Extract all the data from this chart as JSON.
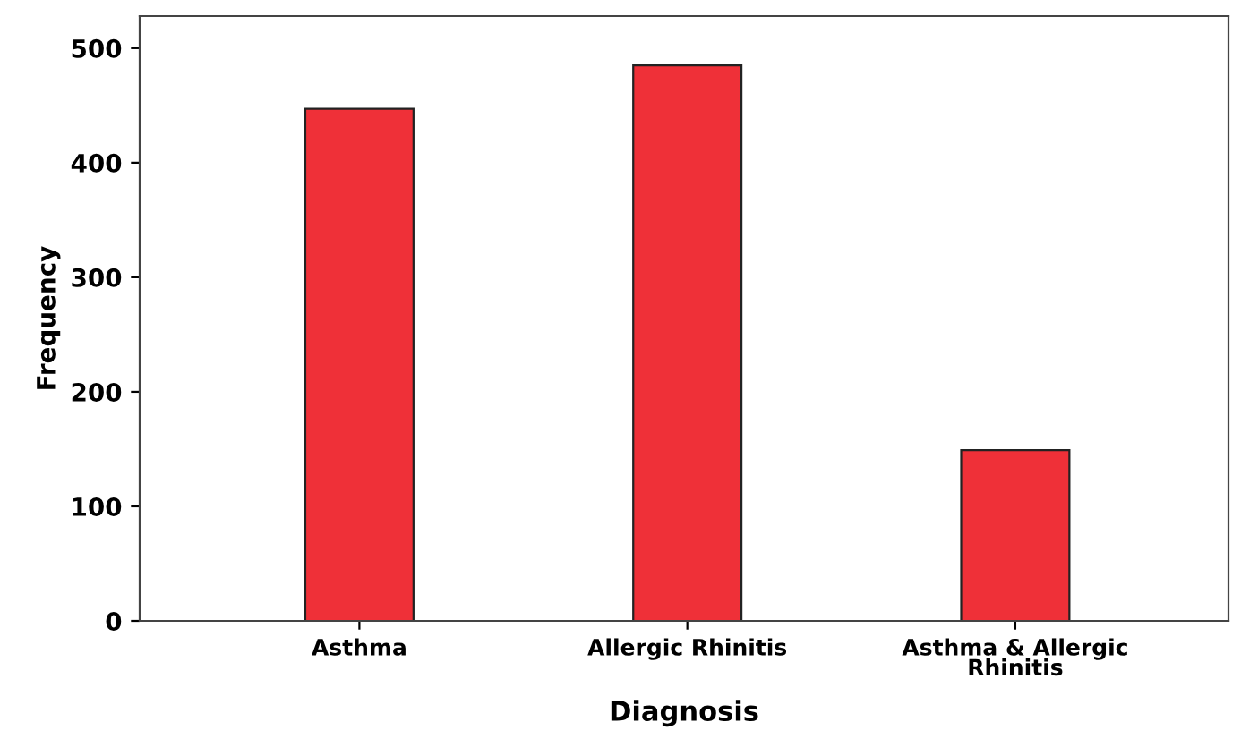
{
  "chart_data": {
    "type": "bar",
    "xlabel": "Diagnosis",
    "ylabel": "Frequency",
    "categories": [
      "Asthma",
      "Allergic Rhinitis",
      "Asthma & Allergic\nRhinitis"
    ],
    "values": [
      447,
      485,
      149
    ],
    "color": "#ef3038",
    "ylim": [
      0,
      528
    ],
    "yticks": [
      0,
      100,
      200,
      300,
      400,
      500
    ],
    "grid": false
  }
}
